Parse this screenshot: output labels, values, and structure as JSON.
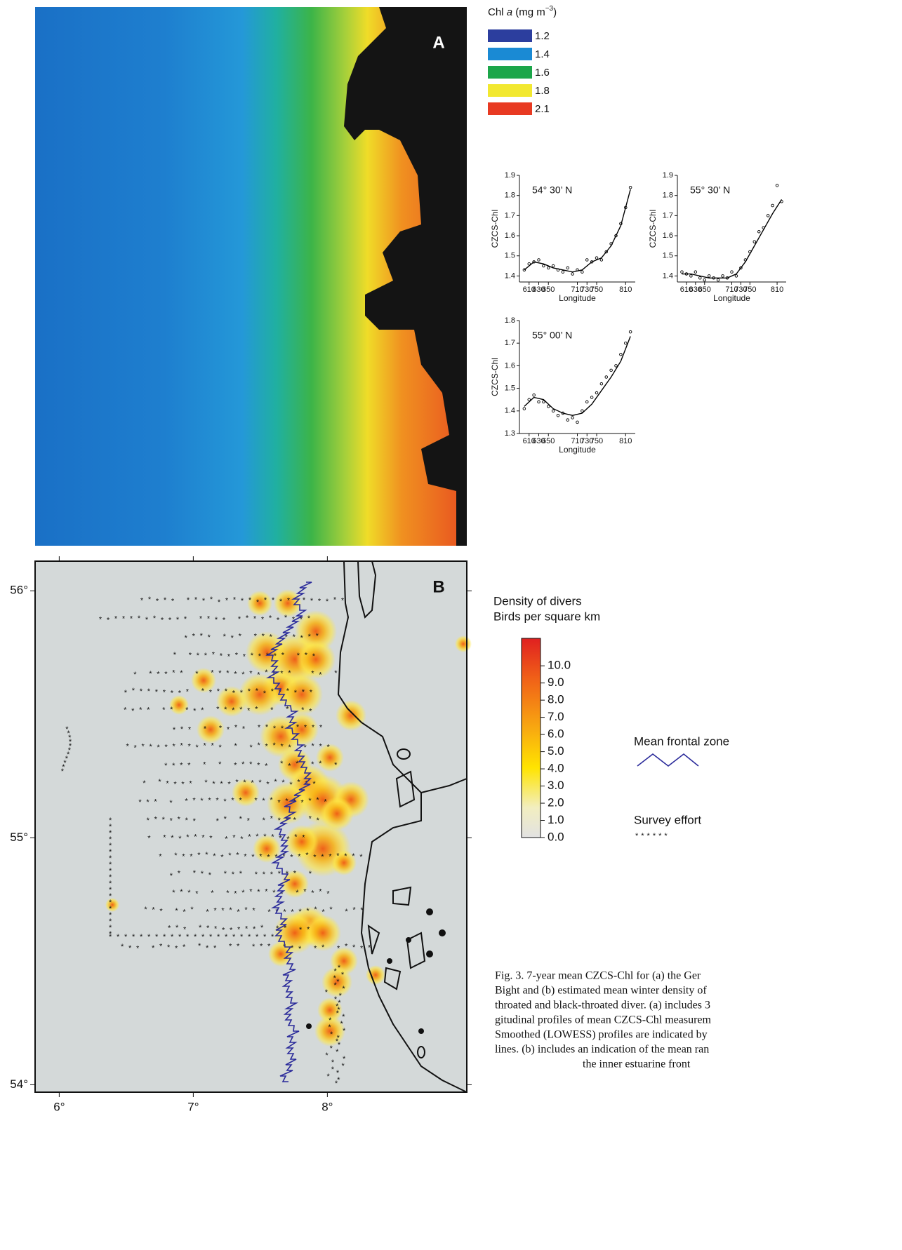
{
  "panel_a": {
    "label": "A",
    "legend": {
      "title": [
        "Chl ",
        "a",
        " (mg m",
        "−3",
        ")"
      ],
      "items": [
        {
          "label": "1.2",
          "color": "#2c3e9e"
        },
        {
          "label": "1.4",
          "color": "#1a8ad4"
        },
        {
          "label": "1.6",
          "color": "#1ca64a"
        },
        {
          "label": "1.8",
          "color": "#f2e830"
        },
        {
          "label": "2.1",
          "color": "#e83a22"
        }
      ]
    }
  },
  "chart_data": [
    {
      "type": "scatter",
      "title": "54° 30’ N",
      "x_label": "Longitude",
      "y_label": "CZCS-Chl",
      "xlim": [
        590,
        830
      ],
      "ylim": [
        1.37,
        1.9
      ],
      "xticks": [
        610,
        630,
        650,
        710,
        730,
        750,
        810
      ],
      "yticks": [
        1.4,
        1.5,
        1.6,
        1.7,
        1.8,
        1.9
      ],
      "series": [
        {
          "color": "#000000",
          "x": [
            600,
            610,
            620,
            630,
            640,
            650,
            660,
            670,
            680,
            690,
            700,
            710,
            720,
            730,
            740,
            750,
            760,
            770,
            780,
            790,
            800,
            810,
            820
          ],
          "values": [
            1.43,
            1.46,
            1.47,
            1.48,
            1.45,
            1.44,
            1.45,
            1.43,
            1.42,
            1.44,
            1.41,
            1.43,
            1.42,
            1.48,
            1.47,
            1.49,
            1.48,
            1.52,
            1.56,
            1.6,
            1.66,
            1.74,
            1.84
          ]
        },
        {
          "type": "line",
          "color": "#000000",
          "x": [
            600,
            620,
            640,
            660,
            680,
            700,
            720,
            740,
            760,
            780,
            800,
            820
          ],
          "values": [
            1.43,
            1.47,
            1.46,
            1.44,
            1.43,
            1.42,
            1.43,
            1.47,
            1.49,
            1.55,
            1.65,
            1.83
          ]
        }
      ]
    },
    {
      "type": "scatter",
      "title": "55° 30’ N",
      "x_label": "Longitude",
      "y_label": "CZCS-Chl",
      "xlim": [
        590,
        830
      ],
      "ylim": [
        1.37,
        1.9
      ],
      "xticks": [
        610,
        630,
        650,
        710,
        730,
        750,
        810
      ],
      "yticks": [
        1.4,
        1.5,
        1.6,
        1.7,
        1.8,
        1.9
      ],
      "series": [
        {
          "color": "#000000",
          "x": [
            600,
            610,
            620,
            630,
            640,
            650,
            660,
            670,
            680,
            690,
            700,
            710,
            720,
            730,
            740,
            750,
            760,
            770,
            780,
            790,
            800,
            810,
            820
          ],
          "values": [
            1.42,
            1.41,
            1.4,
            1.42,
            1.39,
            1.38,
            1.4,
            1.39,
            1.38,
            1.4,
            1.39,
            1.42,
            1.4,
            1.44,
            1.48,
            1.52,
            1.57,
            1.62,
            1.64,
            1.7,
            1.75,
            1.85,
            1.77
          ]
        },
        {
          "type": "line",
          "color": "#000000",
          "x": [
            600,
            620,
            640,
            660,
            680,
            700,
            720,
            740,
            760,
            780,
            800,
            820
          ],
          "values": [
            1.41,
            1.41,
            1.4,
            1.39,
            1.39,
            1.39,
            1.41,
            1.47,
            1.55,
            1.63,
            1.71,
            1.78
          ]
        }
      ]
    },
    {
      "type": "scatter",
      "title": "55° 00’ N",
      "x_label": "Longitude",
      "y_label": "CZCS-Chl",
      "xlim": [
        590,
        830
      ],
      "ylim": [
        1.3,
        1.8
      ],
      "xticks": [
        610,
        630,
        650,
        710,
        730,
        750,
        810
      ],
      "yticks": [
        1.3,
        1.4,
        1.5,
        1.6,
        1.7,
        1.8
      ],
      "series": [
        {
          "color": "#000000",
          "x": [
            600,
            610,
            620,
            630,
            640,
            650,
            660,
            670,
            680,
            690,
            700,
            710,
            720,
            730,
            740,
            750,
            760,
            770,
            780,
            790,
            800,
            810,
            820
          ],
          "values": [
            1.41,
            1.45,
            1.47,
            1.44,
            1.44,
            1.42,
            1.4,
            1.38,
            1.39,
            1.36,
            1.37,
            1.35,
            1.4,
            1.44,
            1.46,
            1.48,
            1.52,
            1.55,
            1.58,
            1.6,
            1.65,
            1.7,
            1.75
          ]
        },
        {
          "type": "line",
          "color": "#000000",
          "x": [
            600,
            620,
            640,
            660,
            680,
            700,
            720,
            740,
            760,
            780,
            800,
            820
          ],
          "values": [
            1.42,
            1.46,
            1.45,
            1.41,
            1.39,
            1.38,
            1.39,
            1.43,
            1.49,
            1.55,
            1.62,
            1.73
          ]
        }
      ]
    }
  ],
  "panel_b": {
    "label": "B",
    "xlim": [
      5.82,
      9.04
    ],
    "ylim": [
      53.97,
      56.12
    ],
    "xticks": [
      {
        "value": 6,
        "label": "6°"
      },
      {
        "value": 7,
        "label": "7°"
      },
      {
        "value": 8,
        "label": "8°"
      }
    ],
    "yticks": [
      {
        "value": 54,
        "label": "54°"
      },
      {
        "value": 55,
        "label": "55°"
      },
      {
        "value": 56,
        "label": "56°"
      }
    ],
    "colorbar": {
      "title": [
        "Density of divers",
        "Birds per square km"
      ],
      "lim": [
        0,
        11.6
      ],
      "ticks": [
        {
          "value": 0,
          "label": "0.0"
        },
        {
          "value": 1,
          "label": "1.0"
        },
        {
          "value": 2,
          "label": "2.0"
        },
        {
          "value": 3,
          "label": "3.0"
        },
        {
          "value": 4,
          "label": "4.0"
        },
        {
          "value": 5,
          "label": "5.0"
        },
        {
          "value": 6,
          "label": "6.0"
        },
        {
          "value": 7,
          "label": "7.0"
        },
        {
          "value": 8,
          "label": "8.0"
        },
        {
          "value": 9,
          "label": "9.0"
        },
        {
          "value": 10,
          "label": "10.0"
        }
      ]
    },
    "legend": {
      "frontal": "Mean frontal zone",
      "survey": "Survey effort"
    }
  },
  "caption": [
    "Fig. 3. 7-year mean CZCS-Chl for (a) the Ger",
    "Bight and (b) estimated mean winter density of",
    "throated and black-throated diver. (a) includes 3",
    "gitudinal profiles of mean CZCS-Chl measurem",
    "Smoothed (LOWESS) profiles are indicated by",
    "lines. (b) includes an indication of the mean ran",
    "the inner estuarine front"
  ]
}
